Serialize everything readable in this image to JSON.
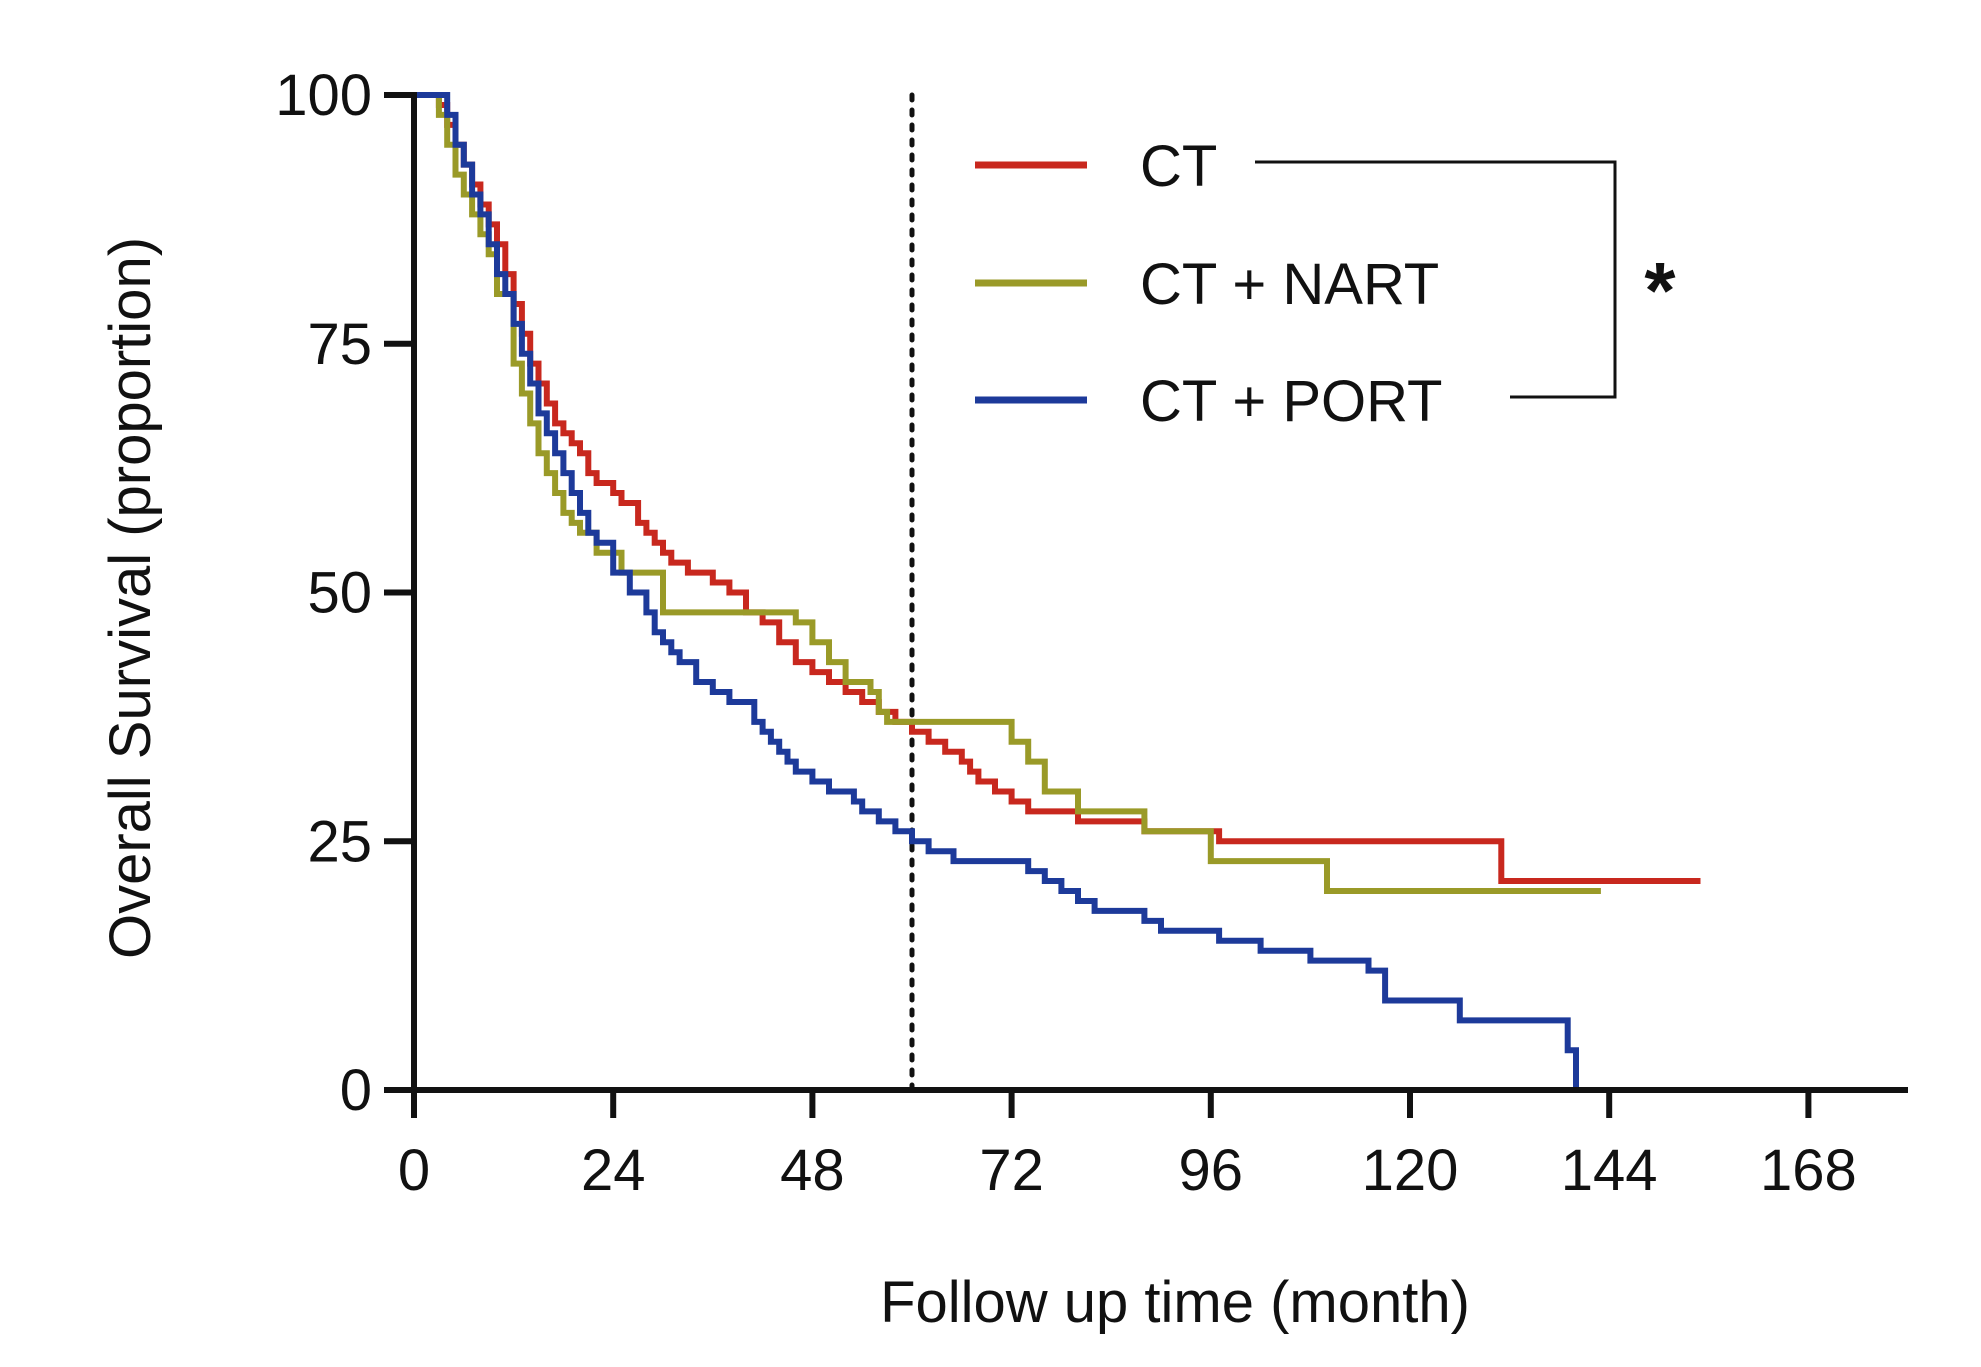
{
  "chart_data": {
    "type": "line",
    "subtype": "kaplan-meier step",
    "xlabel": "Follow up time (month)",
    "ylabel": "Overall Survival (proportion)",
    "xlim": [
      0,
      180
    ],
    "ylim": [
      0,
      100
    ],
    "xticks": [
      0,
      24,
      48,
      72,
      96,
      120,
      144,
      168
    ],
    "yticks": [
      0,
      25,
      50,
      75,
      100
    ],
    "reference_line_x": 60,
    "significance": "*",
    "legend_position": "top-right",
    "series": [
      {
        "name": "CT",
        "color": "#c8281e",
        "x": [
          0,
          3,
          4,
          5,
          6,
          7,
          8,
          9,
          10,
          11,
          12,
          13,
          14,
          15,
          16,
          17,
          18,
          19,
          20,
          21,
          22,
          24,
          25,
          27,
          28,
          29,
          30,
          31,
          33,
          36,
          38,
          40,
          42,
          44,
          46,
          48,
          50,
          52,
          54,
          56,
          58,
          60,
          62,
          64,
          66,
          67,
          68,
          70,
          72,
          74,
          76,
          80,
          84,
          88,
          92,
          97,
          105,
          115,
          125,
          131,
          140,
          150,
          155
        ],
        "y": [
          100,
          99,
          97,
          95,
          93,
          91,
          89,
          87,
          85,
          82,
          79,
          76,
          73,
          71,
          69,
          67,
          66,
          65,
          64,
          62,
          61,
          60,
          59,
          57,
          56,
          55,
          54,
          53,
          52,
          51,
          50,
          48,
          47,
          45,
          43,
          42,
          41,
          40,
          39,
          38,
          37,
          36,
          35,
          34,
          33,
          32,
          31,
          30,
          29,
          28,
          28,
          27,
          27,
          26,
          26,
          25,
          25,
          25,
          25,
          21,
          21,
          21,
          21
        ]
      },
      {
        "name": "CT + NART",
        "color": "#9a9a28",
        "x": [
          0,
          3,
          4,
          5,
          6,
          7,
          8,
          9,
          10,
          12,
          13,
          14,
          15,
          16,
          17,
          18,
          19,
          20,
          22,
          25,
          30,
          36,
          42,
          46,
          48,
          50,
          52,
          55,
          56,
          57,
          60,
          63,
          67,
          71,
          72,
          74,
          76,
          80,
          88,
          96,
          110,
          125,
          143
        ],
        "y": [
          100,
          98,
          95,
          92,
          90,
          88,
          86,
          84,
          80,
          73,
          70,
          67,
          64,
          62,
          60,
          58,
          57,
          56,
          54,
          52,
          48,
          48,
          48,
          47,
          45,
          43,
          41,
          40,
          38,
          37,
          37,
          37,
          37,
          37,
          35,
          33,
          30,
          28,
          26,
          23,
          20,
          20,
          20
        ]
      },
      {
        "name": "CT + PORT",
        "color": "#1d3a9a",
        "x": [
          0,
          3,
          4,
          5,
          6,
          7,
          8,
          9,
          10,
          11,
          12,
          13,
          14,
          15,
          16,
          17,
          18,
          19,
          20,
          21,
          22,
          24,
          26,
          28,
          29,
          30,
          31,
          32,
          34,
          36,
          38,
          41,
          42,
          43,
          44,
          45,
          46,
          48,
          50,
          53,
          54,
          56,
          58,
          60,
          62,
          65,
          69,
          72,
          74,
          76,
          78,
          80,
          82,
          88,
          90,
          94,
          97,
          102,
          108,
          115,
          117,
          126,
          138,
          139,
          140
        ],
        "y": [
          100,
          100,
          98,
          95,
          93,
          90,
          88,
          85,
          82,
          80,
          77,
          74,
          71,
          68,
          66,
          64,
          62,
          60,
          58,
          56,
          55,
          52,
          50,
          48,
          46,
          45,
          44,
          43,
          41,
          40,
          39,
          37,
          36,
          35,
          34,
          33,
          32,
          31,
          30,
          29,
          28,
          27,
          26,
          25,
          24,
          23,
          23,
          23,
          22,
          21,
          20,
          19,
          18,
          17,
          16,
          16,
          15,
          14,
          13,
          12,
          9,
          7,
          7,
          4,
          0
        ]
      }
    ]
  }
}
